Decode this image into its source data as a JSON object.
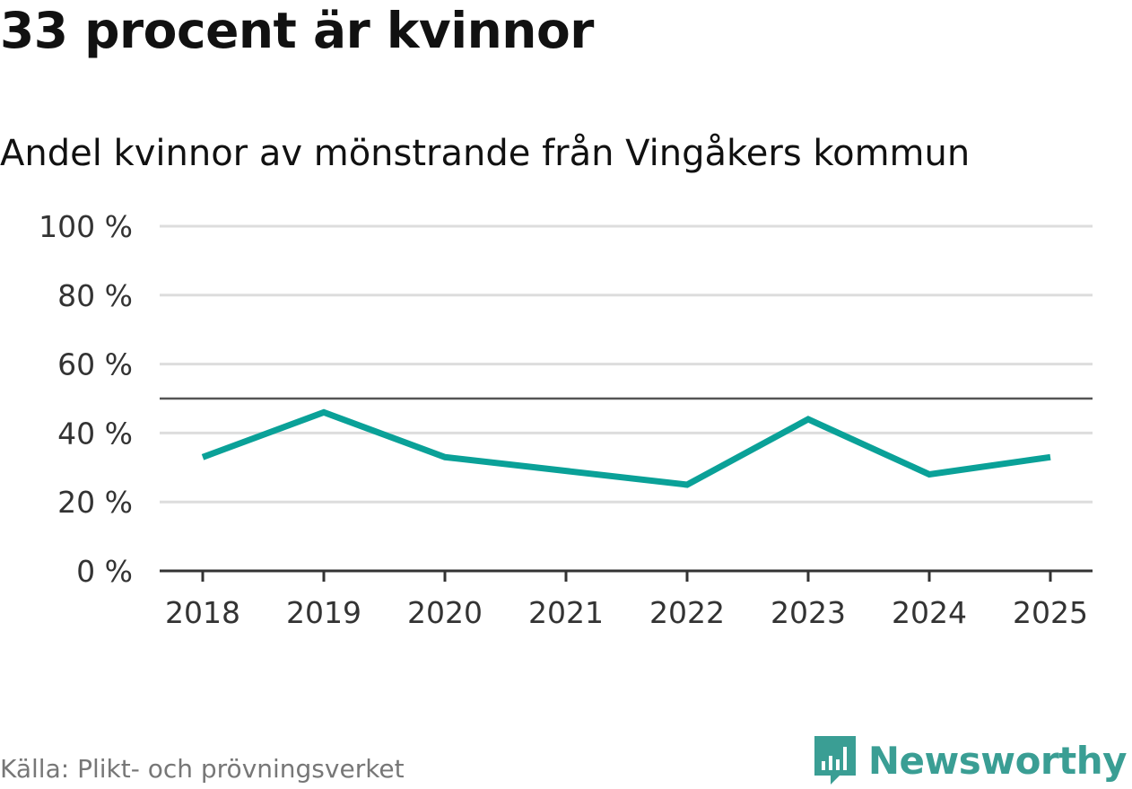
{
  "title": "33 procent är kvinnor",
  "subtitle": "Andel kvinnor av mönstrande från Vingåkers kommun",
  "source": "Källa: Plikt- och prövningsverket",
  "brand": {
    "name": "Newsworthy",
    "icon": "newsworthy-logo-icon",
    "color": "#3a9e94"
  },
  "colors": {
    "line": "#0aa198",
    "grid": "#dddddd",
    "axis": "#333333",
    "reference": "#555555"
  },
  "chart_data": {
    "type": "line",
    "title": "33 procent är kvinnor",
    "subtitle": "Andel kvinnor av mönstrande från Vingåkers kommun",
    "xlabel": "",
    "ylabel": "",
    "categories": [
      "2018",
      "2019",
      "2020",
      "2021",
      "2022",
      "2023",
      "2024",
      "2025"
    ],
    "series": [
      {
        "name": "Andel kvinnor",
        "values": [
          33,
          46,
          33,
          29,
          25,
          44,
          28,
          33
        ]
      }
    ],
    "ylim": [
      0,
      100
    ],
    "yticks": [
      0,
      20,
      40,
      60,
      80,
      100
    ],
    "ytick_labels": [
      "0 %",
      "20 %",
      "40 %",
      "60 %",
      "80 %",
      "100 %"
    ],
    "reference_line": 50,
    "grid": true
  }
}
